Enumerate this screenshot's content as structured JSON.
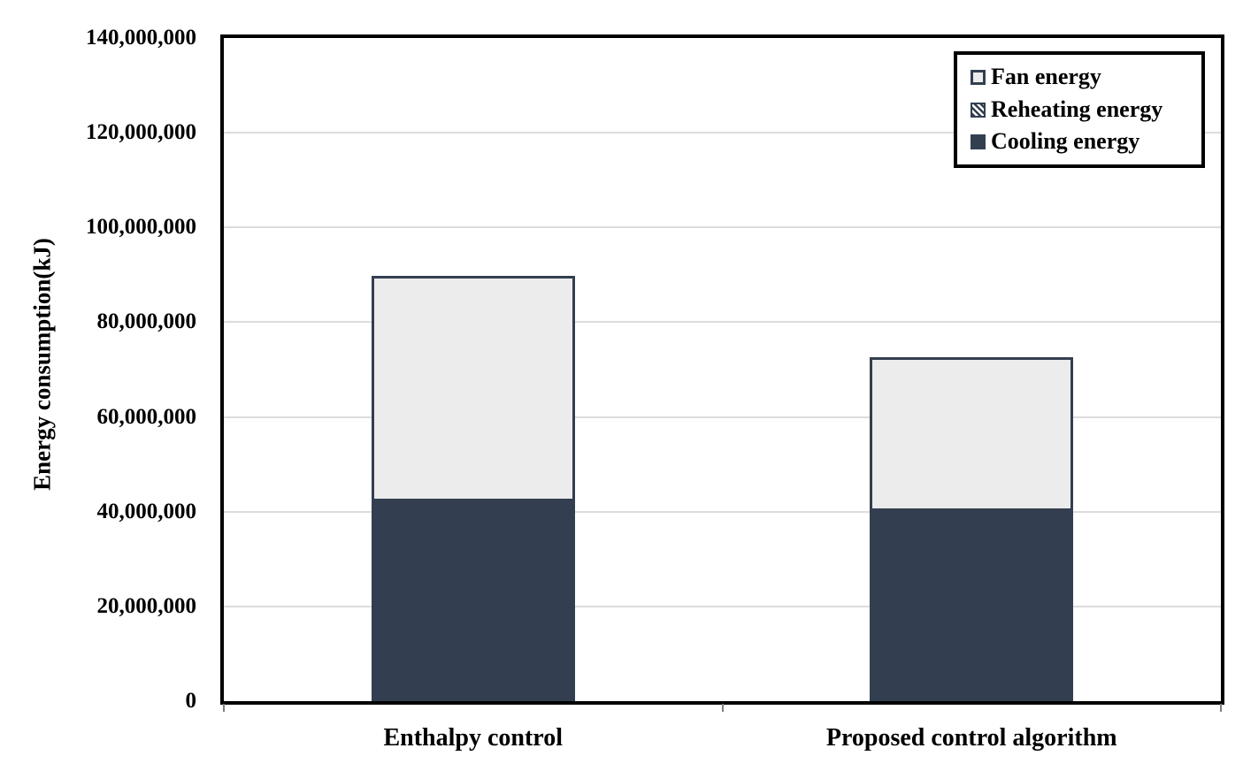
{
  "chart_data": {
    "type": "bar",
    "stacked": true,
    "title": "",
    "xlabel": "",
    "ylabel": "Energy consumption(kJ)",
    "categories": [
      "Enthalpy control",
      "Proposed control algorithm"
    ],
    "series": [
      {
        "name": "Cooling energy",
        "appearance": "solid-dark",
        "values": [
          42200000,
          40100000
        ]
      },
      {
        "name": "Reheating energy",
        "appearance": "hatched",
        "values": [
          0,
          0
        ]
      },
      {
        "name": "Fan energy",
        "appearance": "light-outline",
        "values": [
          47600000,
          32600000
        ]
      }
    ],
    "totals": [
      89800000,
      72700000
    ],
    "ylim": [
      0,
      140000000
    ],
    "ytick_interval": 20000000,
    "yticks": [
      "0",
      "20,000,000",
      "40,000,000",
      "60,000,000",
      "80,000,000",
      "100,000,000",
      "120,000,000",
      "140,000,000"
    ],
    "grid": true,
    "legend_position": "top-right",
    "legend_items": [
      {
        "label": "Fan energy",
        "swatch": "light-outline"
      },
      {
        "label": "Reheating energy",
        "swatch": "hatched"
      },
      {
        "label": "Cooling energy",
        "swatch": "solid-dark"
      }
    ]
  },
  "colors": {
    "bar_dark_navy": "#333F50",
    "bar_light_gray": "#ECECEC",
    "gridline": "#DCDCDC",
    "plot_border": "#000000",
    "background": "#FFFFFF"
  }
}
